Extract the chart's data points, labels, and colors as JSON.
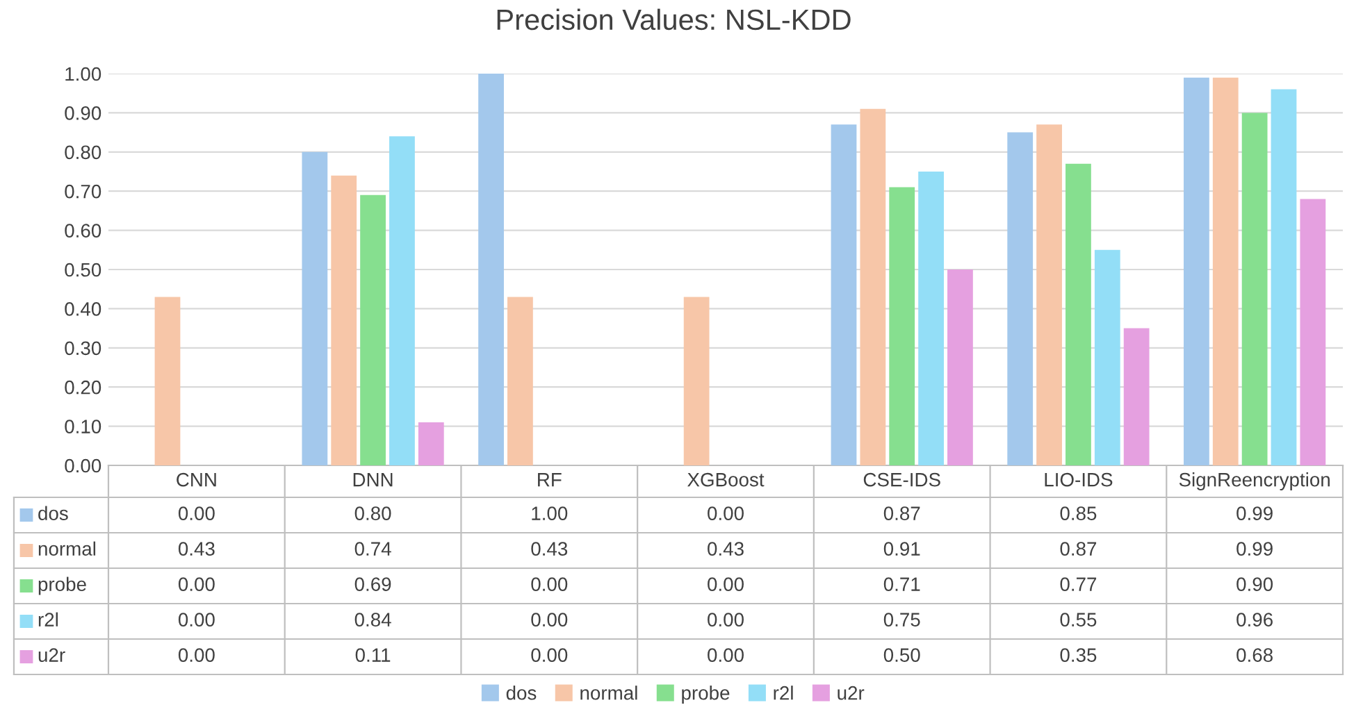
{
  "chart_data": {
    "type": "bar",
    "title": "Precision Values: NSL-KDD",
    "categories": [
      "CNN",
      "DNN",
      "RF",
      "XGBoost",
      "CSE-IDS",
      "LIO-IDS",
      "SignReencryption"
    ],
    "series": [
      {
        "name": "dos",
        "color": "#a3c8ec",
        "values": [
          0.0,
          0.8,
          1.0,
          0.0,
          0.87,
          0.85,
          0.99
        ],
        "value_labels": [
          "0.00",
          "0.80",
          "1.00",
          "0.00",
          "0.87",
          "0.85",
          "0.99"
        ]
      },
      {
        "name": "normal",
        "color": "#f7c6a8",
        "values": [
          0.43,
          0.74,
          0.43,
          0.43,
          0.91,
          0.87,
          0.99
        ],
        "value_labels": [
          "0.43",
          "0.74",
          "0.43",
          "0.43",
          "0.91",
          "0.87",
          "0.99"
        ]
      },
      {
        "name": "probe",
        "color": "#86df8f",
        "values": [
          0.0,
          0.69,
          0.0,
          0.0,
          0.71,
          0.77,
          0.9
        ],
        "value_labels": [
          "0.00",
          "0.69",
          "0.00",
          "0.00",
          "0.71",
          "0.77",
          "0.90"
        ]
      },
      {
        "name": "r2l",
        "color": "#93def7",
        "values": [
          0.0,
          0.84,
          0.0,
          0.0,
          0.75,
          0.55,
          0.96
        ],
        "value_labels": [
          "0.00",
          "0.84",
          "0.00",
          "0.00",
          "0.75",
          "0.55",
          "0.96"
        ]
      },
      {
        "name": "u2r",
        "color": "#e5a0e0",
        "values": [
          0.0,
          0.11,
          0.0,
          0.0,
          0.5,
          0.35,
          0.68
        ],
        "value_labels": [
          "0.00",
          "0.11",
          "0.00",
          "0.00",
          "0.50",
          "0.35",
          "0.68"
        ]
      }
    ],
    "ylim": [
      0,
      1.0
    ],
    "yticks": [
      {
        "value": 0,
        "label": "0.00"
      },
      {
        "value": 0.1,
        "label": "0.10"
      },
      {
        "value": 0.2,
        "label": "0.20"
      },
      {
        "value": 0.3,
        "label": "0.30"
      },
      {
        "value": 0.4,
        "label": "0.40"
      },
      {
        "value": 0.5,
        "label": "0.50"
      },
      {
        "value": 0.6,
        "label": "0.60"
      },
      {
        "value": 0.7,
        "label": "0.70"
      },
      {
        "value": 0.8,
        "label": "0.80"
      },
      {
        "value": 0.9,
        "label": "0.90"
      },
      {
        "value": 1.0,
        "label": "1.00"
      }
    ],
    "grid": "y",
    "legend": "bottom"
  }
}
